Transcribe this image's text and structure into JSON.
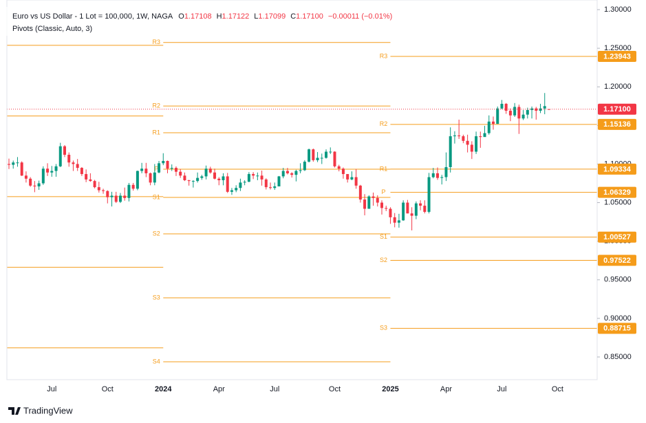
{
  "header": {
    "title": "Euro vs US Dollar - 1 Lot = 100,000, 1W, NAGA",
    "ohlc": [
      {
        "key": "O",
        "value": "1.17108"
      },
      {
        "key": "H",
        "value": "1.17122"
      },
      {
        "key": "L",
        "value": "1.17099"
      },
      {
        "key": "C",
        "value": "1.17100"
      }
    ],
    "change": "−0.00011 (−0.01%)",
    "indicator": "Pivots (Classic, Auto, 3)",
    "brand": "TradingView"
  },
  "chart_data": {
    "type": "candlestick",
    "categories": [
      null,
      null,
      null,
      null,
      null,
      null,
      null,
      null,
      null,
      null,
      "Jul",
      null,
      null,
      null,
      null,
      null,
      null,
      null,
      null,
      null,
      null,
      null,
      null,
      "Oct",
      null,
      null,
      null,
      null,
      null,
      null,
      null,
      null,
      null,
      null,
      null,
      null,
      "2024",
      null,
      null,
      null,
      null,
      null,
      null,
      null,
      null,
      null,
      null,
      null,
      null,
      "Apr",
      null,
      null,
      null,
      null,
      null,
      null,
      null,
      null,
      null,
      null,
      null,
      null,
      "Jul",
      null,
      null,
      null,
      null,
      null,
      null,
      null,
      null,
      null,
      null,
      null,
      null,
      null,
      "Oct",
      null,
      null,
      null,
      null,
      null,
      null,
      null,
      null,
      null,
      null,
      null,
      null,
      "2025",
      null,
      null,
      null,
      null,
      null,
      null,
      null,
      null,
      null,
      null,
      null,
      null,
      "Apr",
      null,
      null,
      null,
      null,
      null,
      null,
      null,
      null,
      null,
      null,
      null,
      null,
      "Jul",
      null,
      null,
      null,
      null,
      null,
      null,
      null,
      null,
      null,
      null,
      null,
      null,
      "Oct"
    ],
    "ohlc": [
      [
        1.1,
        1.107,
        1.0935,
        1.099
      ],
      [
        1.099,
        1.1045,
        1.094,
        1.102
      ],
      [
        1.102,
        1.109,
        1.0965,
        1.102
      ],
      [
        1.102,
        1.1035,
        1.0845,
        1.085
      ],
      [
        1.085,
        1.0905,
        1.076,
        1.081
      ],
      [
        1.081,
        1.083,
        1.0705,
        1.072
      ],
      [
        1.072,
        1.078,
        1.0635,
        1.071
      ],
      [
        1.071,
        1.0785,
        1.0665,
        1.075
      ],
      [
        1.075,
        1.097,
        1.073,
        1.094
      ],
      [
        1.094,
        1.101,
        1.0845,
        1.089
      ],
      [
        1.089,
        1.0975,
        1.0835,
        1.091
      ],
      [
        1.091,
        1.1,
        1.0835,
        1.097
      ],
      [
        1.097,
        1.1275,
        1.096,
        1.123
      ],
      [
        1.123,
        1.1245,
        1.109,
        1.112
      ],
      [
        1.112,
        1.115,
        1.0965,
        1.102
      ],
      [
        1.102,
        1.1045,
        1.091,
        1.1
      ],
      [
        1.1,
        1.1065,
        1.091,
        1.095
      ],
      [
        1.095,
        1.096,
        1.0845,
        1.087
      ],
      [
        1.087,
        1.093,
        1.0765,
        1.08
      ],
      [
        1.08,
        1.088,
        1.077,
        1.078
      ],
      [
        1.078,
        1.0795,
        1.0685,
        1.07
      ],
      [
        1.07,
        1.077,
        1.063,
        1.066
      ],
      [
        1.066,
        1.068,
        1.0615,
        1.065
      ],
      [
        1.065,
        1.066,
        1.049,
        1.057
      ],
      [
        1.057,
        1.064,
        1.045,
        1.059
      ],
      [
        1.059,
        1.064,
        1.0495,
        1.051
      ],
      [
        1.051,
        1.0625,
        1.0495,
        1.059
      ],
      [
        1.059,
        1.0695,
        1.0525,
        1.056
      ],
      [
        1.056,
        1.0755,
        1.0515,
        1.073
      ],
      [
        1.073,
        1.0755,
        1.0655,
        1.068
      ],
      [
        1.068,
        1.0915,
        1.066,
        1.091
      ],
      [
        1.091,
        1.1015,
        1.088,
        1.094
      ],
      [
        1.094,
        1.1015,
        1.083,
        1.088
      ],
      [
        1.088,
        1.089,
        1.0725,
        1.076
      ],
      [
        1.076,
        1.1,
        1.0725,
        1.089
      ],
      [
        1.089,
        1.104,
        1.088,
        1.101
      ],
      [
        1.101,
        1.114,
        1.0985,
        1.104
      ],
      [
        1.104,
        1.1045,
        1.088,
        1.094
      ],
      [
        1.094,
        1.0995,
        1.091,
        1.095
      ],
      [
        1.095,
        1.097,
        1.0845,
        1.09
      ],
      [
        1.09,
        1.0935,
        1.082,
        1.085
      ],
      [
        1.085,
        1.089,
        1.078,
        1.079
      ],
      [
        1.079,
        1.0795,
        1.072,
        1.078
      ],
      [
        1.078,
        1.079,
        1.0695,
        1.078
      ],
      [
        1.078,
        1.089,
        1.076,
        1.082
      ],
      [
        1.082,
        1.086,
        1.0795,
        1.084
      ],
      [
        1.084,
        1.098,
        1.08,
        1.094
      ],
      [
        1.094,
        1.0965,
        1.0875,
        1.089
      ],
      [
        1.089,
        1.094,
        1.08,
        1.081
      ],
      [
        1.081,
        1.083,
        1.0725,
        1.079
      ],
      [
        1.079,
        1.088,
        1.0725,
        1.084
      ],
      [
        1.084,
        1.0885,
        1.0625,
        1.064
      ],
      [
        1.064,
        1.069,
        1.06,
        1.066
      ],
      [
        1.066,
        1.0725,
        1.0635,
        1.069
      ],
      [
        1.069,
        1.081,
        1.065,
        1.076
      ],
      [
        1.076,
        1.079,
        1.0725,
        1.077
      ],
      [
        1.077,
        1.0895,
        1.0765,
        1.087
      ],
      [
        1.087,
        1.0895,
        1.0805,
        1.085
      ],
      [
        1.085,
        1.089,
        1.079,
        1.085
      ],
      [
        1.085,
        1.0915,
        1.072,
        1.08
      ],
      [
        1.08,
        1.0815,
        1.067,
        1.07
      ],
      [
        1.07,
        1.076,
        1.067,
        1.069
      ],
      [
        1.069,
        1.076,
        1.0665,
        1.071
      ],
      [
        1.071,
        1.0845,
        1.071,
        1.084
      ],
      [
        1.084,
        1.095,
        1.0815,
        1.091
      ],
      [
        1.091,
        1.095,
        1.0865,
        1.088
      ],
      [
        1.088,
        1.0895,
        1.0825,
        1.086
      ],
      [
        1.086,
        1.0925,
        1.0775,
        1.091
      ],
      [
        1.091,
        1.101,
        1.088,
        1.092
      ],
      [
        1.092,
        1.105,
        1.091,
        1.103
      ],
      [
        1.103,
        1.12,
        1.102,
        1.119
      ],
      [
        1.119,
        1.12,
        1.103,
        1.105
      ],
      [
        1.105,
        1.1155,
        1.1025,
        1.108
      ],
      [
        1.108,
        1.1135,
        1.1,
        1.108
      ],
      [
        1.108,
        1.119,
        1.107,
        1.116
      ],
      [
        1.116,
        1.1215,
        1.113,
        1.116
      ],
      [
        1.116,
        1.1165,
        1.0955,
        1.097
      ],
      [
        1.097,
        1.099,
        1.0905,
        1.094
      ],
      [
        1.094,
        1.0955,
        1.081,
        1.087
      ],
      [
        1.087,
        1.087,
        1.076,
        1.08
      ],
      [
        1.08,
        1.0905,
        1.079,
        1.083
      ],
      [
        1.083,
        1.0935,
        1.068,
        1.072
      ],
      [
        1.072,
        1.073,
        1.05,
        1.054
      ],
      [
        1.054,
        1.061,
        1.0335,
        1.042
      ],
      [
        1.042,
        1.0595,
        1.042,
        1.058
      ],
      [
        1.058,
        1.063,
        1.046,
        1.056
      ],
      [
        1.056,
        1.0595,
        1.045,
        1.05
      ],
      [
        1.05,
        1.053,
        1.0345,
        1.043
      ],
      [
        1.043,
        1.046,
        1.039,
        1.042
      ],
      [
        1.042,
        1.044,
        1.0225,
        1.031
      ],
      [
        1.031,
        1.0365,
        1.018,
        1.024
      ],
      [
        1.024,
        1.0355,
        1.0175,
        1.027
      ],
      [
        1.027,
        1.053,
        1.0265,
        1.05
      ],
      [
        1.05,
        1.0535,
        1.036,
        1.036
      ],
      [
        1.036,
        1.044,
        1.014,
        1.033
      ],
      [
        1.033,
        1.0515,
        1.0285,
        1.049
      ],
      [
        1.049,
        1.053,
        1.04,
        1.046
      ],
      [
        1.046,
        1.053,
        1.036,
        1.038
      ],
      [
        1.038,
        1.0885,
        1.036,
        1.083
      ],
      [
        1.083,
        1.095,
        1.0815,
        1.088
      ],
      [
        1.088,
        1.0955,
        1.0795,
        1.082
      ],
      [
        1.082,
        1.086,
        1.0735,
        1.083
      ],
      [
        1.083,
        1.115,
        1.078,
        1.096
      ],
      [
        1.096,
        1.1475,
        1.089,
        1.136
      ],
      [
        1.136,
        1.1425,
        1.1265,
        1.137
      ],
      [
        1.137,
        1.1575,
        1.1325,
        1.136
      ],
      [
        1.136,
        1.138,
        1.127,
        1.13
      ],
      [
        1.13,
        1.138,
        1.115,
        1.125
      ],
      [
        1.125,
        1.1295,
        1.1065,
        1.116
      ],
      [
        1.116,
        1.142,
        1.113,
        1.136
      ],
      [
        1.136,
        1.142,
        1.121,
        1.135
      ],
      [
        1.135,
        1.1495,
        1.1355,
        1.14
      ],
      [
        1.14,
        1.163,
        1.138,
        1.155
      ],
      [
        1.155,
        1.1615,
        1.1445,
        1.152
      ],
      [
        1.152,
        1.1745,
        1.152,
        1.172
      ],
      [
        1.172,
        1.183,
        1.171,
        1.178
      ],
      [
        1.178,
        1.179,
        1.165,
        1.169
      ],
      [
        1.169,
        1.172,
        1.1555,
        1.163
      ],
      [
        1.163,
        1.179,
        1.161,
        1.174
      ],
      [
        1.174,
        1.177,
        1.139,
        1.159
      ],
      [
        1.159,
        1.17,
        1.157,
        1.164
      ],
      [
        1.164,
        1.173,
        1.159,
        1.17
      ],
      [
        1.17,
        1.1745,
        1.159,
        1.172
      ],
      [
        1.172,
        1.174,
        1.1575,
        1.169
      ],
      [
        1.169,
        1.178,
        1.166,
        1.172
      ],
      [
        1.172,
        1.192,
        1.1645,
        1.175
      ],
      [
        1.17108,
        1.17122,
        1.17099,
        1.171
      ],
      null,
      null
    ],
    "up_color": "#089981",
    "down_color": "#f23645",
    "ylim": [
      0.8206,
      1.3125
    ],
    "yticks": [
      {
        "value": 1.3,
        "label": "1.30000"
      },
      {
        "value": 1.25,
        "label": "1.25000"
      },
      {
        "value": 1.2,
        "label": "1.20000"
      },
      {
        "value": 1.15,
        "label": "1.15000"
      },
      {
        "value": 1.1,
        "label": "1.10000"
      },
      {
        "value": 1.05,
        "label": "1.05000"
      },
      {
        "value": 1.0,
        "label": "1.00000"
      },
      {
        "value": 0.95,
        "label": "0.95000"
      },
      {
        "value": 0.9,
        "label": "0.90000"
      },
      {
        "value": 0.85,
        "label": "0.85000"
      }
    ],
    "pivot_color": "#f59c1a",
    "pivots": [
      {
        "levels": [
          {
            "name": null,
            "value": 1.2538
          },
          {
            "name": null,
            "value": 1.1622
          },
          {
            "name": null,
            "value": 1.0578
          },
          {
            "name": null,
            "value": 0.9662
          },
          {
            "name": null,
            "value": 0.8618
          }
        ]
      },
      {
        "levels": [
          {
            "name": "R3",
            "value": 1.2575
          },
          {
            "name": "R2",
            "value": 1.1752
          },
          {
            "name": "R1",
            "value": 1.1405
          },
          {
            "name": "P",
            "value": 1.0933
          },
          {
            "name": "S1",
            "value": 1.0567
          },
          {
            "name": "S2",
            "value": 1.0095
          },
          {
            "name": "S3",
            "value": 0.9266
          },
          {
            "name": "S4",
            "value": 0.8438
          }
        ]
      },
      {
        "levels": [
          {
            "name": "R3",
            "value": 1.23943
          },
          {
            "name": "R2",
            "value": 1.15136
          },
          {
            "name": "R1",
            "value": 1.09334
          },
          {
            "name": "P",
            "value": 1.06329
          },
          {
            "name": "S1",
            "value": 1.00527
          },
          {
            "name": "S2",
            "value": 0.97522
          },
          {
            "name": "S3",
            "value": 0.88715
          }
        ]
      }
    ],
    "last_price": {
      "value": 1.171,
      "label": "1.17100",
      "color": "#f23645"
    }
  }
}
